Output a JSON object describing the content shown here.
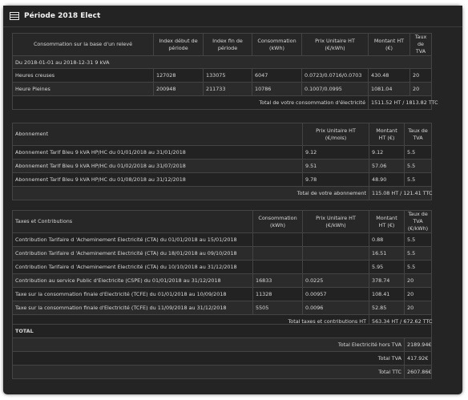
{
  "window": {
    "title": "Période 2018 Elect"
  },
  "consumption": {
    "headers": [
      "Consommation sur la base d'un relevé",
      "Index début de période",
      "Index fin de période",
      "Consommation (kWh)",
      "Prix Unitaire HT (€/kWh)",
      "Montant HT (€)",
      "Taux de TVA"
    ],
    "period_label": "Du 2018-01-01 au 2018-12-31 9 kVA",
    "rows": [
      [
        "Heures creuses",
        "127028",
        "133075",
        "6047",
        "0.0723/0.0716/0.0703",
        "430.48",
        "20"
      ],
      [
        "Heure Pleines",
        "200948",
        "211733",
        "10786",
        "0.1007/0.0995",
        "1081.04",
        "20"
      ]
    ],
    "total_label": "Total de votre consommation d'électricité",
    "total_value": "1511.52 HT / 1813.82 TTC"
  },
  "subscription": {
    "headers": [
      "Abonnement",
      "Prix Unitaire HT (€/mois)",
      "Montant HT (€)",
      "Taux de TVA"
    ],
    "rows": [
      [
        "Abonnement Tarif Bleu 9 kVA HP/HC du 01/01/2018 au 31/01/2018",
        "9.12",
        "9.12",
        "5.5"
      ],
      [
        "Abonnement Tarif Bleu 9 kVA HP/HC du 01/02/2018 au 31/07/2018",
        "9.51",
        "57.06",
        "5.5"
      ],
      [
        "Abonnement Tarif Bleu 9 kVA HP/HC du 01/08/2018 au 31/12/2018",
        "9.78",
        "48.90",
        "5.5"
      ]
    ],
    "total_label": "Total de votre abonnement",
    "total_value": "115.08 HT / 121.41 TTC"
  },
  "taxes": {
    "headers": [
      "Taxes et Contributions",
      "Consommation (kWh)",
      "Prix Unitaire HT (€/kWh)",
      "Montant HT (€)",
      "Taux de TVA (€/kWh)"
    ],
    "rows": [
      [
        "Contribution Tarifaire d 'Acheminement Electricité (CTA) du 01/01/2018 au 15/01/2018",
        "",
        "",
        "0.88",
        "5.5"
      ],
      [
        "Contribution Tarifaire d 'Acheminement Electricité (CTA) du 18/01/2018 au 09/10/2018",
        "",
        "",
        "16.51",
        "5.5"
      ],
      [
        "Contribution Tarifaire d 'Acheminement Electricité (CTA) du 10/10/2018 au 31/12/2018",
        "",
        "",
        "5.95",
        "5.5"
      ],
      [
        "Contribution au service Public d'Electricite (CSPE) du 01/01/2018 au 31/12/2018",
        "16833",
        "0.0225",
        "378.74",
        "20"
      ],
      [
        "Taxe sur la consommation finale d'Electricité (TCFE) du 01/01/2018 au 10/09/2018",
        "11328",
        "0.00957",
        "108.41",
        "20"
      ],
      [
        "Taxe sur la consommation finale d'Electricité (TCFE) du 11/09/2018 au 31/12/2018",
        "5505",
        "0.0096",
        "52.85",
        "20"
      ]
    ],
    "total_label": "Total taxes et contributions HT",
    "total_value": "563.34 HT / 672.62 TTC"
  },
  "totals": {
    "title": "TOTAL",
    "rows": [
      [
        "Total Electricité hors TVA",
        "2189.94€"
      ],
      [
        "Total TVA",
        "417.92€"
      ],
      [
        "Total TTC",
        "2607.86€"
      ]
    ]
  }
}
